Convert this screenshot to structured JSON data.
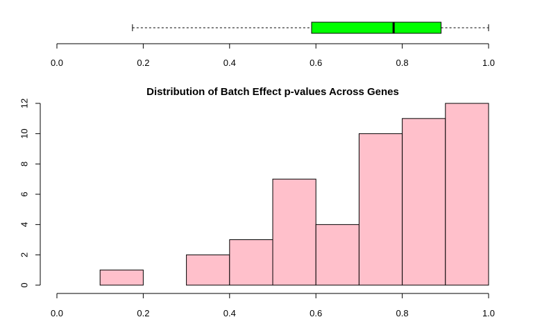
{
  "chart_data": [
    {
      "type": "boxplot",
      "orientation": "horizontal",
      "min": 0.175,
      "q1": 0.59,
      "median": 0.78,
      "q3": 0.89,
      "max": 1.0,
      "box_color": "#00ff00",
      "xlim": [
        0.0,
        1.0
      ],
      "x_ticks": [
        "0.0",
        "0.2",
        "0.4",
        "0.6",
        "0.8",
        "1.0"
      ]
    },
    {
      "type": "histogram",
      "title": "Distribution of Batch Effect p-values Across Genes",
      "bar_color": "#ffc0cb",
      "bins": [
        {
          "from": 0.0,
          "to": 0.1,
          "count": 0
        },
        {
          "from": 0.1,
          "to": 0.2,
          "count": 1
        },
        {
          "from": 0.2,
          "to": 0.3,
          "count": 0
        },
        {
          "from": 0.3,
          "to": 0.4,
          "count": 2
        },
        {
          "from": 0.4,
          "to": 0.5,
          "count": 3
        },
        {
          "from": 0.5,
          "to": 0.6,
          "count": 7
        },
        {
          "from": 0.6,
          "to": 0.7,
          "count": 4
        },
        {
          "from": 0.7,
          "to": 0.8,
          "count": 10
        },
        {
          "from": 0.8,
          "to": 0.9,
          "count": 11
        },
        {
          "from": 0.9,
          "to": 1.0,
          "count": 12
        }
      ],
      "xlim": [
        0.0,
        1.0
      ],
      "ylim": [
        0,
        12
      ],
      "x_ticks": [
        "0.0",
        "0.2",
        "0.4",
        "0.6",
        "0.8",
        "1.0"
      ],
      "y_ticks": [
        "0",
        "2",
        "4",
        "6",
        "8",
        "10",
        "12"
      ],
      "grid": false
    }
  ]
}
